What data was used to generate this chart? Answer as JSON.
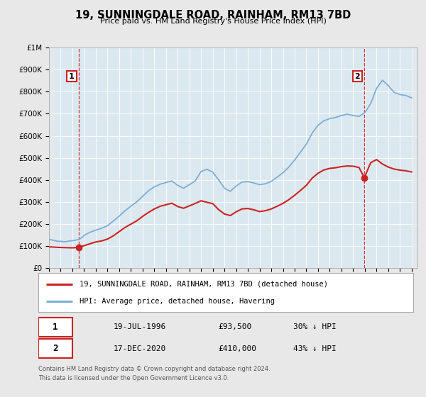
{
  "title": "19, SUNNINGDALE ROAD, RAINHAM, RM13 7BD",
  "subtitle": "Price paid vs. HM Land Registry's House Price Index (HPI)",
  "ylim": [
    0,
    1000000
  ],
  "yticks": [
    0,
    100000,
    200000,
    300000,
    400000,
    500000,
    600000,
    700000,
    800000,
    900000,
    1000000
  ],
  "ytick_labels": [
    "£0",
    "£100K",
    "£200K",
    "£300K",
    "£400K",
    "£500K",
    "£600K",
    "£700K",
    "£800K",
    "£900K",
    "£1M"
  ],
  "hpi_color": "#7bafd4",
  "price_color": "#cc2222",
  "marker_color": "#cc2222",
  "bg_color": "#e8e8e8",
  "plot_bg_color": "#dce8f0",
  "grid_color": "#ffffff",
  "legend_label_price": "19, SUNNINGDALE ROAD, RAINHAM, RM13 7BD (detached house)",
  "legend_label_hpi": "HPI: Average price, detached house, Havering",
  "transaction1_date": "19-JUL-1996",
  "transaction1_price": "£93,500",
  "transaction1_pct": "30% ↓ HPI",
  "transaction1_x": 1996.54,
  "transaction1_y": 93500,
  "transaction2_date": "17-DEC-2020",
  "transaction2_price": "£410,000",
  "transaction2_pct": "43% ↓ HPI",
  "transaction2_x": 2020.96,
  "transaction2_y": 410000,
  "vline1_x": 1996.54,
  "vline2_x": 2020.96,
  "footnote1": "Contains HM Land Registry data © Crown copyright and database right 2024.",
  "footnote2": "This data is licensed under the Open Government Licence v3.0.",
  "xmin": 1994.0,
  "xmax": 2025.5,
  "hpi_years": [
    1994.0,
    1994.08,
    1994.17,
    1994.25,
    1994.33,
    1994.42,
    1994.5,
    1994.58,
    1994.67,
    1994.75,
    1994.83,
    1994.92,
    1995.0,
    1995.08,
    1995.17,
    1995.25,
    1995.33,
    1995.42,
    1995.5,
    1995.58,
    1995.67,
    1995.75,
    1995.83,
    1995.92,
    1996.0,
    1996.08,
    1996.17,
    1996.25,
    1996.33,
    1996.42,
    1996.5,
    1996.58,
    1996.67,
    1996.75,
    1996.83,
    1996.92,
    1997.0,
    1997.5,
    1998.0,
    1998.5,
    1999.0,
    1999.5,
    2000.0,
    2000.5,
    2001.0,
    2001.5,
    2002.0,
    2002.5,
    2003.0,
    2003.5,
    2004.0,
    2004.5,
    2005.0,
    2005.5,
    2006.0,
    2006.5,
    2007.0,
    2007.5,
    2008.0,
    2008.5,
    2009.0,
    2009.5,
    2010.0,
    2010.5,
    2011.0,
    2011.5,
    2012.0,
    2012.5,
    2013.0,
    2013.5,
    2014.0,
    2014.5,
    2015.0,
    2015.5,
    2016.0,
    2016.5,
    2017.0,
    2017.5,
    2018.0,
    2018.5,
    2019.0,
    2019.5,
    2020.0,
    2020.5,
    2021.0,
    2021.5,
    2022.0,
    2022.5,
    2023.0,
    2023.5,
    2024.0,
    2024.5,
    2025.0
  ],
  "hpi_values": [
    130000,
    129000,
    128000,
    127000,
    126000,
    125000,
    124000,
    123000,
    122000,
    121500,
    121000,
    121000,
    121000,
    120500,
    120000,
    119500,
    119000,
    119500,
    120000,
    121000,
    122000,
    122500,
    123000,
    123500,
    124000,
    124500,
    125000,
    126000,
    127000,
    128000,
    129000,
    131000,
    133000,
    136000,
    139000,
    142000,
    148000,
    162000,
    172000,
    180000,
    192000,
    213000,
    235000,
    260000,
    280000,
    300000,
    325000,
    350000,
    368000,
    380000,
    388000,
    395000,
    375000,
    362000,
    378000,
    395000,
    438000,
    448000,
    435000,
    400000,
    362000,
    348000,
    372000,
    390000,
    392000,
    386000,
    378000,
    382000,
    393000,
    412000,
    432000,
    458000,
    490000,
    526000,
    562000,
    612000,
    648000,
    668000,
    678000,
    683000,
    692000,
    698000,
    692000,
    688000,
    705000,
    746000,
    815000,
    852000,
    828000,
    797000,
    787000,
    783000,
    772000
  ],
  "price_years": [
    1994.0,
    1995.0,
    1996.0,
    1996.54,
    1997.0,
    1997.5,
    1998.0,
    1998.5,
    1999.0,
    1999.5,
    2000.0,
    2000.5,
    2001.0,
    2001.5,
    2002.0,
    2002.5,
    2003.0,
    2003.5,
    2004.0,
    2004.5,
    2005.0,
    2005.5,
    2006.0,
    2006.5,
    2007.0,
    2007.5,
    2008.0,
    2008.5,
    2009.0,
    2009.5,
    2010.0,
    2010.5,
    2011.0,
    2011.5,
    2012.0,
    2012.5,
    2013.0,
    2013.5,
    2014.0,
    2014.5,
    2015.0,
    2015.5,
    2016.0,
    2016.5,
    2017.0,
    2017.5,
    2018.0,
    2018.5,
    2019.0,
    2019.5,
    2020.0,
    2020.5,
    2020.96,
    2021.5,
    2022.0,
    2022.5,
    2023.0,
    2023.5,
    2024.0,
    2024.5,
    2025.0
  ],
  "price_values": [
    96000,
    93000,
    91500,
    93500,
    101000,
    110000,
    118000,
    123000,
    131000,
    146000,
    165000,
    184000,
    199000,
    214000,
    234000,
    252000,
    268000,
    280000,
    287000,
    294000,
    279000,
    271000,
    282000,
    293000,
    305000,
    298000,
    292000,
    265000,
    245000,
    238000,
    255000,
    268000,
    270000,
    264000,
    256000,
    260000,
    268000,
    280000,
    293000,
    310000,
    330000,
    352000,
    375000,
    408000,
    430000,
    445000,
    452000,
    455000,
    460000,
    463000,
    462000,
    456000,
    410000,
    478000,
    492000,
    472000,
    458000,
    449000,
    444000,
    441000,
    436000
  ]
}
